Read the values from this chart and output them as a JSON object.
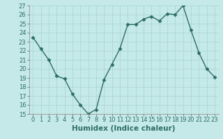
{
  "x": [
    0,
    1,
    2,
    3,
    4,
    5,
    6,
    7,
    8,
    9,
    10,
    11,
    12,
    13,
    14,
    15,
    16,
    17,
    18,
    19,
    20,
    21,
    22,
    23
  ],
  "y": [
    23.5,
    22.2,
    21.0,
    19.2,
    18.9,
    17.2,
    16.0,
    15.0,
    15.5,
    18.8,
    20.5,
    22.2,
    24.9,
    24.9,
    25.5,
    25.8,
    25.3,
    26.1,
    26.0,
    27.0,
    24.3,
    21.8,
    20.0,
    19.1
  ],
  "line_color": "#2d6e63",
  "marker": "D",
  "markersize": 2.5,
  "linewidth": 1.0,
  "background_color": "#c5e8e8",
  "grid_color": "#a8d5d5",
  "xlabel": "Humidex (Indice chaleur)",
  "ylim": [
    15,
    27
  ],
  "xlim": [
    -0.5,
    23.5
  ],
  "yticks": [
    15,
    16,
    17,
    18,
    19,
    20,
    21,
    22,
    23,
    24,
    25,
    26,
    27
  ],
  "xticks": [
    0,
    1,
    2,
    3,
    4,
    5,
    6,
    7,
    8,
    9,
    10,
    11,
    12,
    13,
    14,
    15,
    16,
    17,
    18,
    19,
    20,
    21,
    22,
    23
  ],
  "xlabel_fontsize": 7.5,
  "tick_fontsize": 6.0
}
